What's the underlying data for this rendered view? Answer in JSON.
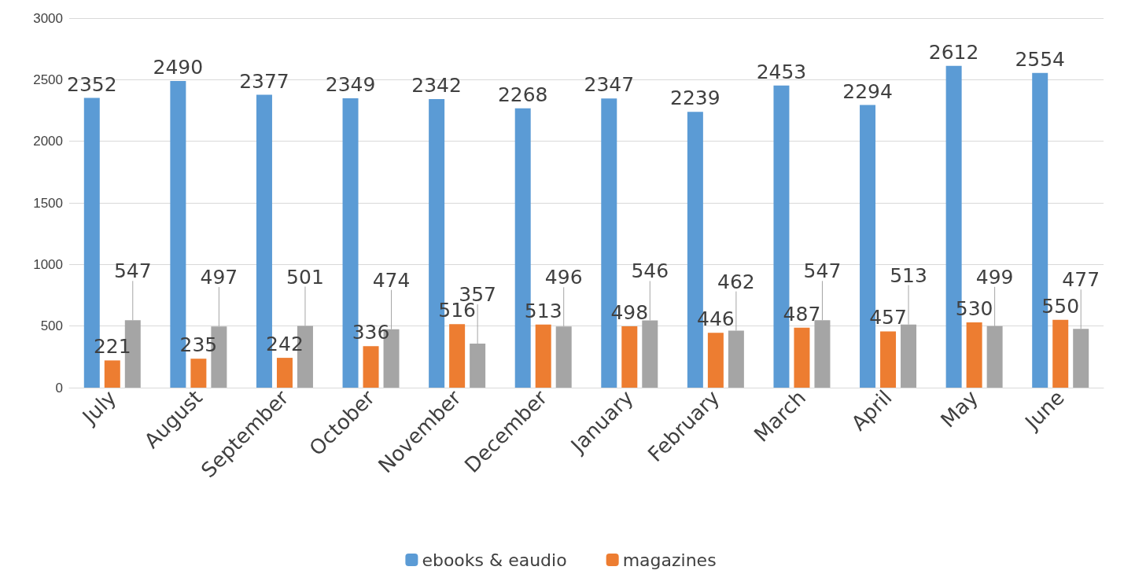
{
  "chart_data": {
    "type": "bar",
    "categories": [
      "July",
      "August",
      "September",
      "October",
      "November",
      "December",
      "January",
      "February",
      "March",
      "April",
      "May",
      "June"
    ],
    "series": [
      {
        "name": "ebooks & eaudio",
        "color": "#5b9bd5",
        "values": [
          2352,
          2490,
          2377,
          2349,
          2342,
          2268,
          2347,
          2239,
          2453,
          2294,
          2612,
          2554
        ]
      },
      {
        "name": "magazines",
        "color": "#ed7d31",
        "values": [
          221,
          235,
          242,
          336,
          516,
          513,
          498,
          446,
          487,
          457,
          530,
          550
        ]
      },
      {
        "color": "#a5a5a5",
        "values": [
          547,
          497,
          501,
          474,
          357,
          496,
          546,
          462,
          547,
          513,
          499,
          477
        ]
      }
    ],
    "ylim": [
      0,
      3000
    ],
    "yticks": [
      0,
      500,
      1000,
      1500,
      2000,
      2500,
      3000
    ],
    "grid": "y",
    "legend": "bottom",
    "data_labels": true
  }
}
